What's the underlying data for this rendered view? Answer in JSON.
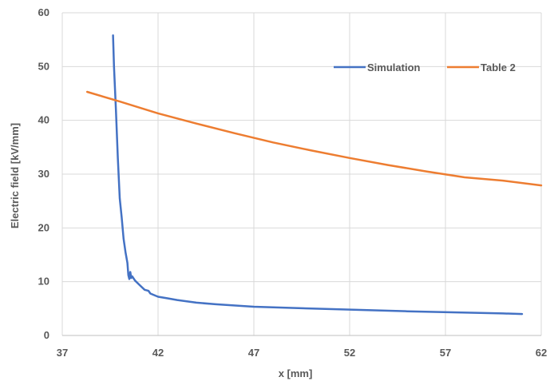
{
  "chart_data": {
    "type": "line",
    "title": "",
    "xlabel": "x [mm]",
    "ylabel": "Electric field [kV/mm]",
    "xlim": [
      37,
      62
    ],
    "ylim": [
      0,
      60
    ],
    "x_ticks": [
      "37",
      "42",
      "47",
      "52",
      "57",
      "62"
    ],
    "y_ticks": [
      "0",
      "10",
      "20",
      "30",
      "40",
      "50",
      "60"
    ],
    "grid": true,
    "legend_position": "top-right",
    "series": [
      {
        "name": "Simulation",
        "color": "#4472C4",
        "x": [
          39.65,
          39.7,
          39.8,
          39.9,
          40.0,
          40.1,
          40.2,
          40.3,
          40.4,
          40.45,
          40.5,
          40.55,
          40.6,
          40.65,
          40.8,
          41.0,
          41.3,
          41.5,
          41.6,
          42.0,
          42.5,
          43.0,
          43.5,
          44.0,
          45.0,
          47.0,
          50.0,
          55.0,
          60.0,
          61.0
        ],
        "y": [
          55.8,
          50.0,
          42.0,
          33.0,
          25.5,
          22.0,
          18.0,
          15.5,
          13.5,
          11.2,
          10.5,
          11.8,
          10.7,
          11.0,
          10.2,
          9.5,
          8.5,
          8.3,
          7.8,
          7.2,
          6.9,
          6.6,
          6.35,
          6.1,
          5.8,
          5.35,
          5.0,
          4.5,
          4.1,
          4.0
        ]
      },
      {
        "name": "Table 2",
        "color": "#ED7D31",
        "x": [
          38.3,
          40,
          42,
          44,
          46,
          48,
          50,
          52,
          54,
          56,
          58,
          60,
          62
        ],
        "y": [
          45.3,
          43.5,
          41.3,
          39.4,
          37.6,
          35.9,
          34.4,
          33.0,
          31.7,
          30.5,
          29.4,
          28.8,
          27.9
        ]
      }
    ]
  }
}
